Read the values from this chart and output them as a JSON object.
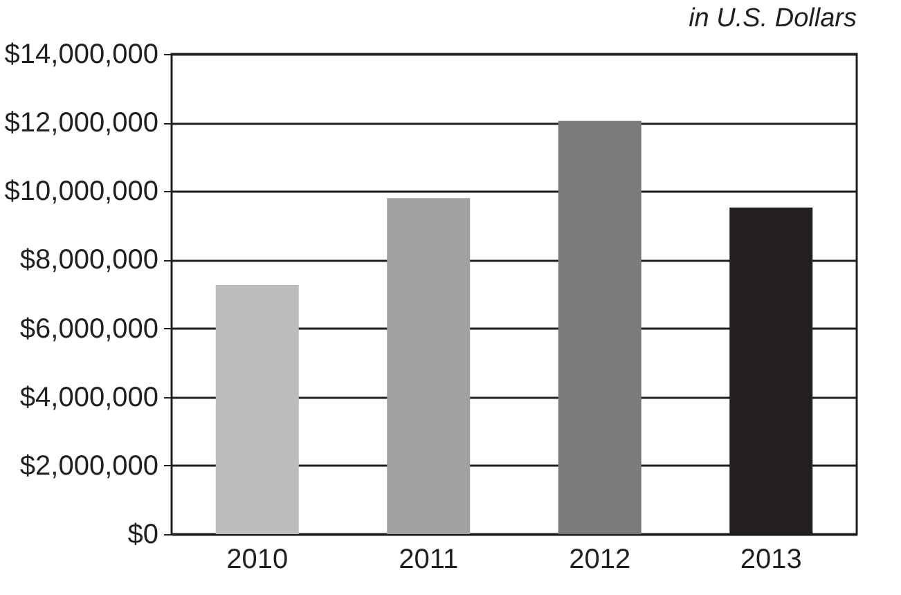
{
  "chart_data": {
    "type": "bar",
    "title": "in U.S. Dollars",
    "categories": [
      "2010",
      "2011",
      "2012",
      "2013"
    ],
    "values": [
      7260000,
      9800000,
      12050000,
      9520000
    ],
    "colors": [
      "#bcbdbf",
      "#a0a1a3",
      "#7a7b7d",
      "#231f20"
    ],
    "ylim": [
      0,
      14000000
    ],
    "yticks": [
      {
        "value": 0,
        "label": "$0"
      },
      {
        "value": 2000000,
        "label": "$2,000,000"
      },
      {
        "value": 4000000,
        "label": "$4,000,000"
      },
      {
        "value": 6000000,
        "label": "$6,000,000"
      },
      {
        "value": 8000000,
        "label": "$8,000,000"
      },
      {
        "value": 10000000,
        "label": "$10,000,000"
      },
      {
        "value": 12000000,
        "label": "$12,000,000"
      },
      {
        "value": 14000000,
        "label": "$14,000,000"
      }
    ],
    "grid": "y"
  }
}
